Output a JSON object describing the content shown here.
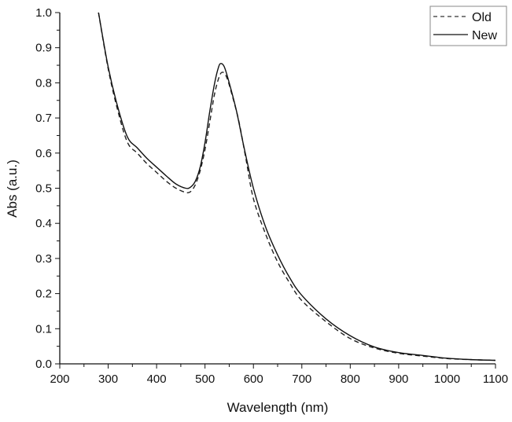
{
  "chart_data": {
    "type": "line",
    "title": "",
    "xlabel": "Wavelength (nm)",
    "ylabel": "Abs (a.u.)",
    "xlim": [
      200,
      1100
    ],
    "ylim": [
      0.0,
      1.0
    ],
    "xticks": [
      200,
      300,
      400,
      500,
      600,
      700,
      800,
      900,
      1000,
      1100
    ],
    "yticks": [
      "0.0",
      "0.1",
      "0.2",
      "0.3",
      "0.4",
      "0.5",
      "0.6",
      "0.7",
      "0.8",
      "0.9",
      "1.0"
    ],
    "grid": false,
    "legend_position": "top-right",
    "series": [
      {
        "name": "Old",
        "style": "dashed",
        "color": "#222222",
        "x": [
          280,
          300,
          320,
          340,
          360,
          380,
          400,
          420,
          440,
          460,
          470,
          480,
          490,
          500,
          510,
          520,
          530,
          537,
          545,
          555,
          570,
          585,
          600,
          625,
          650,
          675,
          700,
          750,
          800,
          850,
          900,
          950,
          1000,
          1050,
          1100
        ],
        "y": [
          1.0,
          0.84,
          0.72,
          0.63,
          0.6,
          0.57,
          0.545,
          0.52,
          0.5,
          0.488,
          0.49,
          0.51,
          0.55,
          0.61,
          0.69,
          0.77,
          0.82,
          0.83,
          0.815,
          0.77,
          0.69,
          0.58,
          0.47,
          0.37,
          0.29,
          0.23,
          0.18,
          0.12,
          0.072,
          0.045,
          0.03,
          0.022,
          0.015,
          0.012,
          0.01
        ]
      },
      {
        "name": "New",
        "style": "solid",
        "color": "#111111",
        "x": [
          280,
          300,
          320,
          340,
          360,
          380,
          400,
          420,
          440,
          460,
          470,
          480,
          490,
          500,
          510,
          520,
          528,
          533,
          540,
          550,
          565,
          580,
          600,
          625,
          650,
          675,
          700,
          750,
          800,
          850,
          900,
          950,
          1000,
          1050,
          1100
        ],
        "y": [
          1.0,
          0.845,
          0.73,
          0.645,
          0.615,
          0.585,
          0.56,
          0.535,
          0.512,
          0.5,
          0.503,
          0.52,
          0.56,
          0.63,
          0.72,
          0.8,
          0.845,
          0.855,
          0.845,
          0.8,
          0.72,
          0.62,
          0.5,
          0.39,
          0.31,
          0.245,
          0.195,
          0.128,
          0.08,
          0.048,
          0.032,
          0.024,
          0.016,
          0.012,
          0.01
        ]
      }
    ]
  }
}
